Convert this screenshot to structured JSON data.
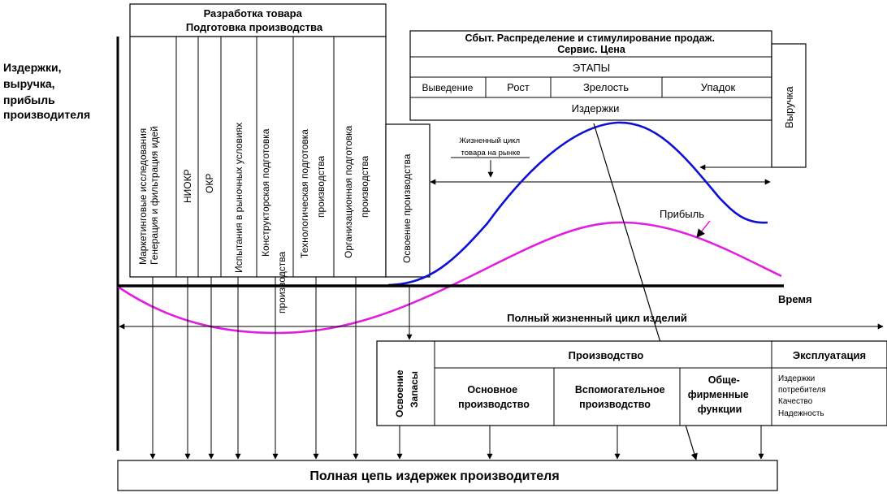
{
  "y_axis_label": [
    "Издержки,",
    "выручка,",
    "прибыль",
    "производителя"
  ],
  "development": {
    "header": [
      "Разработка товара",
      "Подготовка производства"
    ],
    "stages": [
      [
        "Маркетинговые исследования",
        "Генерация и фильтрация идей"
      ],
      [
        "НИОКР"
      ],
      [
        "ОКР"
      ],
      [
        "Испытания в рыночных условиях"
      ],
      [
        "Конструкторская подготовка",
        "производства"
      ],
      [
        "Технологическая подготовка",
        "производства"
      ],
      [
        "Организационная подготовка",
        "производства"
      ]
    ],
    "mastery": "Освоение производства"
  },
  "market": {
    "title": [
      "Сбыт.  Распределение и стимулирование продаж.",
      "Сервис. Цена"
    ],
    "stages_label": "ЭТАПЫ",
    "phases": [
      "Выведение",
      "Рост",
      "Зрелость",
      "Упадок"
    ],
    "costs": "Издержки",
    "revenue": "Выручка"
  },
  "market_lifecycle": [
    "Жизненный цикл",
    "товара на рынке"
  ],
  "profit_label": "Прибыль",
  "time_label": "Время",
  "full_lifecycle": "Полный жизненный цикл изделий",
  "production_table": {
    "mastery": [
      "Освоение",
      "Запасы"
    ],
    "production": "Производство",
    "exploitation": "Эксплуатация",
    "main": [
      "Основное",
      "производство"
    ],
    "auxiliary": [
      "Вспомогательное",
      "производство"
    ],
    "general": [
      "Обще-",
      "фирменные",
      "функции"
    ],
    "exploitation_items": [
      "Издержки",
      "потребителя",
      "Качество",
      "Надежность"
    ]
  },
  "footer": "Полная цепь издержек производителя",
  "colors": {
    "revenue_curve": "#1010d0",
    "profit_curve": "#e020e0",
    "ink": "#000000"
  }
}
